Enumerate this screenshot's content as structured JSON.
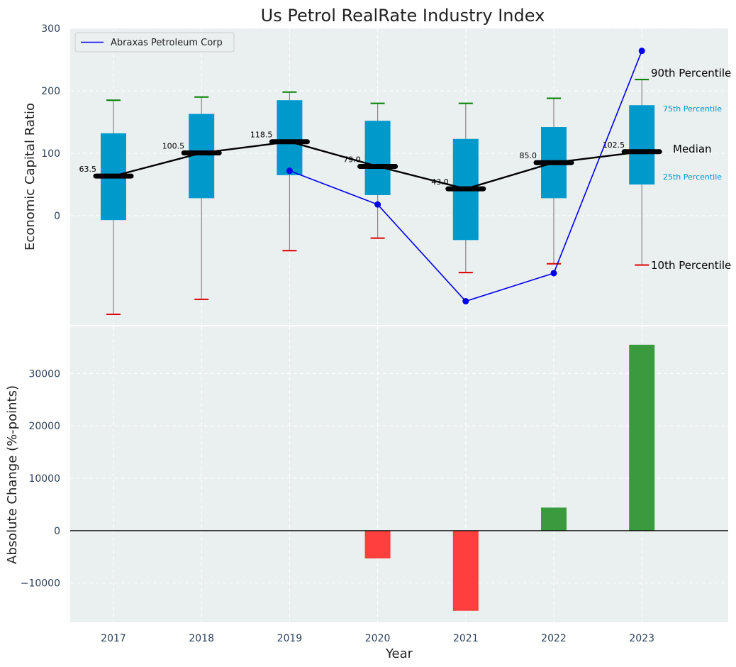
{
  "chart_data": [
    {
      "type": "box",
      "title": "Us Petrol RealRate Industry Index",
      "ylabel": "Economic Capital Ratio",
      "ylim": [
        -175,
        300
      ],
      "yticks": [
        0,
        100,
        200,
        300
      ],
      "categories": [
        "2017",
        "2018",
        "2019",
        "2020",
        "2021",
        "2022",
        "2023"
      ],
      "p10": [
        -158,
        -134,
        -56,
        -36,
        -91,
        -77,
        -79
      ],
      "p25": [
        -7,
        28,
        65,
        33,
        -39,
        28,
        50
      ],
      "median": [
        63.5,
        100.5,
        118.5,
        79.0,
        43.0,
        85.0,
        102.5
      ],
      "median_labels": [
        "63.5",
        "100.5",
        "118.5",
        "79.0",
        "43.0",
        "85.0",
        "102.5"
      ],
      "p75": [
        132,
        163,
        185,
        152,
        123,
        142,
        177
      ],
      "p90": [
        185,
        190,
        198,
        180,
        180,
        188,
        218
      ],
      "legend": "Abraxas Petroleum Corp",
      "company_series": {
        "name": "Abraxas Petroleum Corp",
        "categories": [
          "2019",
          "2020",
          "2021",
          "2022",
          "2023"
        ],
        "values": [
          72,
          18,
          -137,
          -92,
          264
        ]
      },
      "percentile_labels": {
        "p90": "90th Percentile",
        "p75": "75th Percentile",
        "median": "Median",
        "p25": "25th Percentile",
        "p10": "10th Percentile"
      },
      "colors": {
        "box": "#0099cc",
        "median_line": "#000000",
        "company": "#0000ee",
        "p90_cap": "#008000",
        "p10_cap": "#dd0000",
        "background": "#eaeff0"
      }
    },
    {
      "type": "bar",
      "xlabel": "Year",
      "ylabel": "Absolute Change (%-points)",
      "ylim": [
        -17500,
        39000
      ],
      "yticks": [
        -10000,
        0,
        10000,
        20000,
        30000
      ],
      "ytick_labels": [
        "−10000",
        "0",
        "10000",
        "20000",
        "30000"
      ],
      "categories": [
        "2017",
        "2018",
        "2019",
        "2020",
        "2021",
        "2022",
        "2023"
      ],
      "values": [
        null,
        null,
        null,
        -5300,
        -15300,
        4400,
        35500
      ],
      "colors": {
        "positive": "#3a9a3e",
        "negative": "#ff3e3e"
      }
    }
  ]
}
